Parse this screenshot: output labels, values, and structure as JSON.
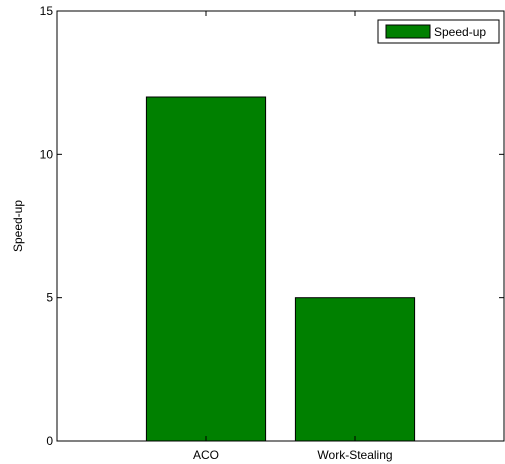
{
  "chart_data": {
    "type": "bar",
    "categories": [
      "ACO",
      "Work-Stealing"
    ],
    "series": [
      {
        "name": "Speed-up",
        "values": [
          12,
          5
        ],
        "color": "#008000"
      }
    ],
    "xlabel": "",
    "ylabel": "Speed-up",
    "ylim": [
      0,
      15
    ],
    "yticks": [
      0,
      5,
      10,
      15
    ],
    "grid": false,
    "legend": "top-right"
  }
}
